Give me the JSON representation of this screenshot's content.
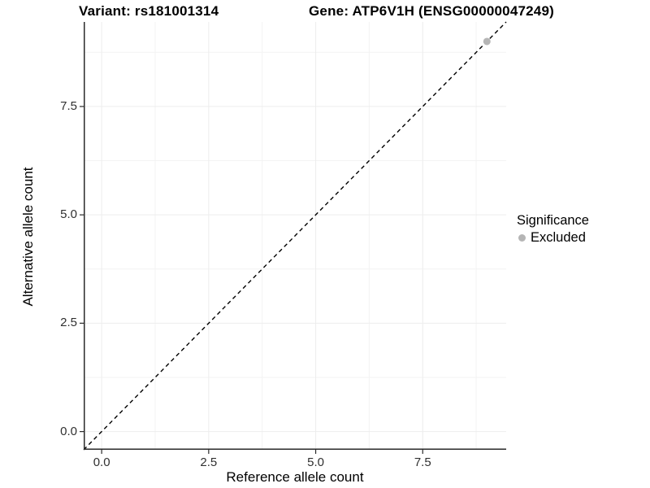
{
  "header": {
    "variant_title": "Variant: rs181001314",
    "gene_title": "Gene: ATP6V1H (ENSG00000047249)"
  },
  "chart_data": {
    "type": "scatter",
    "title": "",
    "xlabel": "Reference allele count",
    "ylabel": "Alternative allele count",
    "xlim": [
      -0.42,
      9.45
    ],
    "ylim": [
      -0.42,
      9.45
    ],
    "x_ticks": {
      "values": [
        0,
        2.5,
        5,
        7.5
      ],
      "labels": [
        "0.0",
        "2.5",
        "5.0",
        "7.5"
      ]
    },
    "y_ticks": {
      "values": [
        0,
        2.5,
        5,
        7.5
      ],
      "labels": [
        "0.0",
        "2.5",
        "5.0",
        "7.5"
      ]
    },
    "minor_ticks": [
      1.25,
      3.75,
      6.25,
      8.75
    ],
    "grid": true,
    "reference_line": {
      "type": "identity",
      "style": "dashed",
      "color": "#000000"
    },
    "series": [
      {
        "name": "Excluded",
        "color": "#b5b5b5",
        "points": [
          [
            9,
            9
          ]
        ]
      }
    ],
    "legend": {
      "title": "Significance",
      "position": "right",
      "items": [
        {
          "label": "Excluded",
          "color": "#b5b5b5"
        }
      ]
    }
  },
  "colors": {
    "axis_line": "#2a2a2a",
    "grid_major": "#ededed",
    "grid_minor": "#f3f3f3",
    "tick_text": "#303030",
    "background": "#ffffff"
  }
}
